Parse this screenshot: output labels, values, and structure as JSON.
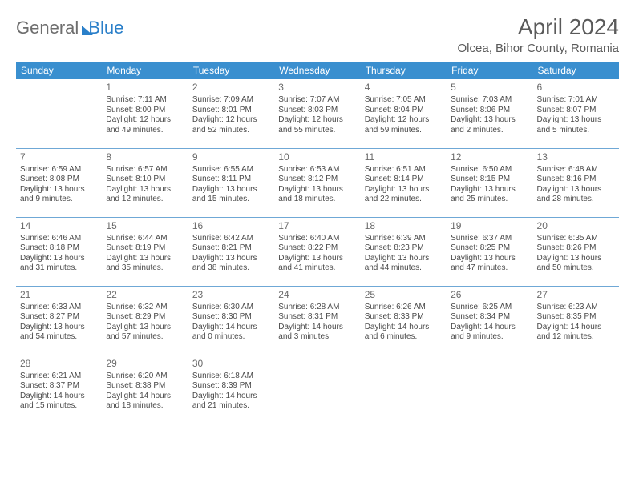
{
  "brand": {
    "text1": "General",
    "text2": "Blue"
  },
  "title": "April 2024",
  "location": "Olcea, Bihor County, Romania",
  "colors": {
    "header_bg": "#3a8fcf",
    "header_fg": "#ffffff",
    "row_border": "#6fa8d6",
    "text": "#4a4a4a",
    "daynum": "#6a6a6a",
    "brand_gray": "#6e6e6e",
    "brand_blue": "#2a7fc9"
  },
  "weekdays": [
    "Sunday",
    "Monday",
    "Tuesday",
    "Wednesday",
    "Thursday",
    "Friday",
    "Saturday"
  ],
  "weeks": [
    [
      null,
      {
        "d": "1",
        "sr": "7:11 AM",
        "ss": "8:00 PM",
        "dl": "12 hours and 49 minutes."
      },
      {
        "d": "2",
        "sr": "7:09 AM",
        "ss": "8:01 PM",
        "dl": "12 hours and 52 minutes."
      },
      {
        "d": "3",
        "sr": "7:07 AM",
        "ss": "8:03 PM",
        "dl": "12 hours and 55 minutes."
      },
      {
        "d": "4",
        "sr": "7:05 AM",
        "ss": "8:04 PM",
        "dl": "12 hours and 59 minutes."
      },
      {
        "d": "5",
        "sr": "7:03 AM",
        "ss": "8:06 PM",
        "dl": "13 hours and 2 minutes."
      },
      {
        "d": "6",
        "sr": "7:01 AM",
        "ss": "8:07 PM",
        "dl": "13 hours and 5 minutes."
      }
    ],
    [
      {
        "d": "7",
        "sr": "6:59 AM",
        "ss": "8:08 PM",
        "dl": "13 hours and 9 minutes."
      },
      {
        "d": "8",
        "sr": "6:57 AM",
        "ss": "8:10 PM",
        "dl": "13 hours and 12 minutes."
      },
      {
        "d": "9",
        "sr": "6:55 AM",
        "ss": "8:11 PM",
        "dl": "13 hours and 15 minutes."
      },
      {
        "d": "10",
        "sr": "6:53 AM",
        "ss": "8:12 PM",
        "dl": "13 hours and 18 minutes."
      },
      {
        "d": "11",
        "sr": "6:51 AM",
        "ss": "8:14 PM",
        "dl": "13 hours and 22 minutes."
      },
      {
        "d": "12",
        "sr": "6:50 AM",
        "ss": "8:15 PM",
        "dl": "13 hours and 25 minutes."
      },
      {
        "d": "13",
        "sr": "6:48 AM",
        "ss": "8:16 PM",
        "dl": "13 hours and 28 minutes."
      }
    ],
    [
      {
        "d": "14",
        "sr": "6:46 AM",
        "ss": "8:18 PM",
        "dl": "13 hours and 31 minutes."
      },
      {
        "d": "15",
        "sr": "6:44 AM",
        "ss": "8:19 PM",
        "dl": "13 hours and 35 minutes."
      },
      {
        "d": "16",
        "sr": "6:42 AM",
        "ss": "8:21 PM",
        "dl": "13 hours and 38 minutes."
      },
      {
        "d": "17",
        "sr": "6:40 AM",
        "ss": "8:22 PM",
        "dl": "13 hours and 41 minutes."
      },
      {
        "d": "18",
        "sr": "6:39 AM",
        "ss": "8:23 PM",
        "dl": "13 hours and 44 minutes."
      },
      {
        "d": "19",
        "sr": "6:37 AM",
        "ss": "8:25 PM",
        "dl": "13 hours and 47 minutes."
      },
      {
        "d": "20",
        "sr": "6:35 AM",
        "ss": "8:26 PM",
        "dl": "13 hours and 50 minutes."
      }
    ],
    [
      {
        "d": "21",
        "sr": "6:33 AM",
        "ss": "8:27 PM",
        "dl": "13 hours and 54 minutes."
      },
      {
        "d": "22",
        "sr": "6:32 AM",
        "ss": "8:29 PM",
        "dl": "13 hours and 57 minutes."
      },
      {
        "d": "23",
        "sr": "6:30 AM",
        "ss": "8:30 PM",
        "dl": "14 hours and 0 minutes."
      },
      {
        "d": "24",
        "sr": "6:28 AM",
        "ss": "8:31 PM",
        "dl": "14 hours and 3 minutes."
      },
      {
        "d": "25",
        "sr": "6:26 AM",
        "ss": "8:33 PM",
        "dl": "14 hours and 6 minutes."
      },
      {
        "d": "26",
        "sr": "6:25 AM",
        "ss": "8:34 PM",
        "dl": "14 hours and 9 minutes."
      },
      {
        "d": "27",
        "sr": "6:23 AM",
        "ss": "8:35 PM",
        "dl": "14 hours and 12 minutes."
      }
    ],
    [
      {
        "d": "28",
        "sr": "6:21 AM",
        "ss": "8:37 PM",
        "dl": "14 hours and 15 minutes."
      },
      {
        "d": "29",
        "sr": "6:20 AM",
        "ss": "8:38 PM",
        "dl": "14 hours and 18 minutes."
      },
      {
        "d": "30",
        "sr": "6:18 AM",
        "ss": "8:39 PM",
        "dl": "14 hours and 21 minutes."
      },
      null,
      null,
      null,
      null
    ]
  ],
  "labels": {
    "sunrise": "Sunrise:",
    "sunset": "Sunset:",
    "daylight": "Daylight:"
  }
}
